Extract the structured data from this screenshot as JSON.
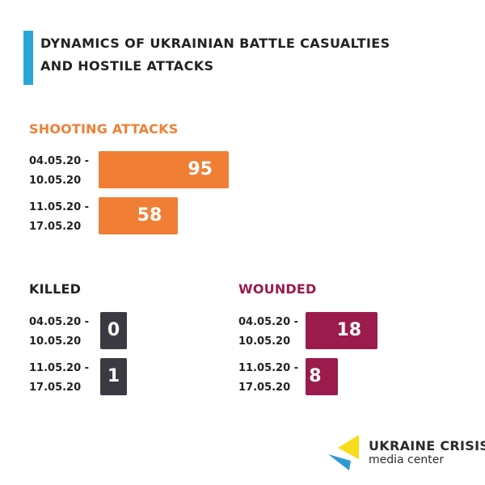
{
  "colors": {
    "accent": "#29a6d8",
    "shooting": "#f07f35",
    "killed": "#3a3a43",
    "wounded": "#9b1b4c",
    "logo_yellow": "#f6dc1a",
    "logo_blue": "#2f99d6"
  },
  "title": {
    "line1": "DYNAMICS OF UKRAINIAN BATTLE CASUALTIES",
    "line2": "AND HOSTILE ATTACKS"
  },
  "chart_data": [
    {
      "type": "bar",
      "title": "SHOOTING ATTACKS",
      "categories": [
        "04.05.20 - 10.05.20",
        "11.05.20 - 17.05.20"
      ],
      "values": [
        95,
        58
      ],
      "labels": [
        {
          "line1": "04.05.20 -",
          "line2": "10.05.20"
        },
        {
          "line1": "11.05.20 -",
          "line2": "17.05.20"
        }
      ],
      "color": "#f07f35"
    },
    {
      "type": "bar",
      "title": "KILLED",
      "categories": [
        "04.05.20 - 10.05.20",
        "11.05.20 - 17.05.20"
      ],
      "values": [
        0,
        1
      ],
      "labels": [
        {
          "line1": "04.05.20 -",
          "line2": "10.05.20"
        },
        {
          "line1": "11.05.20 -",
          "line2": "17.05.20"
        }
      ],
      "color": "#3a3a43"
    },
    {
      "type": "bar",
      "title": "WOUNDED",
      "categories": [
        "04.05.20 - 10.05.20",
        "11.05.20 - 17.05.20"
      ],
      "values": [
        18,
        8
      ],
      "labels": [
        {
          "line1": "04.05.20 -",
          "line2": "10.05.20"
        },
        {
          "line1": "11.05.20 -",
          "line2": "17.05.20"
        }
      ],
      "color": "#9b1b4c"
    }
  ],
  "logo": {
    "line1": "UKRAINE CRISIS",
    "line2": "media center"
  }
}
